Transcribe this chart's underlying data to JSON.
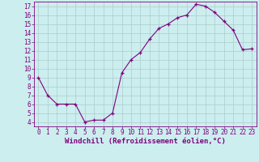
{
  "x": [
    0,
    1,
    2,
    3,
    4,
    5,
    6,
    7,
    8,
    9,
    10,
    11,
    12,
    13,
    14,
    15,
    16,
    17,
    18,
    19,
    20,
    21,
    22,
    23
  ],
  "y": [
    9.0,
    7.0,
    6.0,
    6.0,
    6.0,
    4.0,
    4.2,
    4.2,
    5.0,
    9.5,
    11.0,
    11.8,
    13.3,
    14.5,
    15.0,
    15.7,
    16.0,
    17.2,
    17.0,
    16.3,
    15.3,
    14.3,
    12.1,
    12.2
  ],
  "line_color": "#800080",
  "marker": "+",
  "bg_color": "#cceeee",
  "grid_color": "#aacccc",
  "axis_color": "#800080",
  "spine_color": "#800080",
  "xlabel": "Windchill (Refroidissement éolien,°C)",
  "xlim": [
    -0.5,
    23.5
  ],
  "ylim": [
    3.5,
    17.5
  ],
  "yticks": [
    4,
    5,
    6,
    7,
    8,
    9,
    10,
    11,
    12,
    13,
    14,
    15,
    16,
    17
  ],
  "xticks": [
    0,
    1,
    2,
    3,
    4,
    5,
    6,
    7,
    8,
    9,
    10,
    11,
    12,
    13,
    14,
    15,
    16,
    17,
    18,
    19,
    20,
    21,
    22,
    23
  ],
  "tick_fontsize": 5.5,
  "xlabel_fontsize": 6.5,
  "marker_size": 3,
  "linewidth": 0.8
}
